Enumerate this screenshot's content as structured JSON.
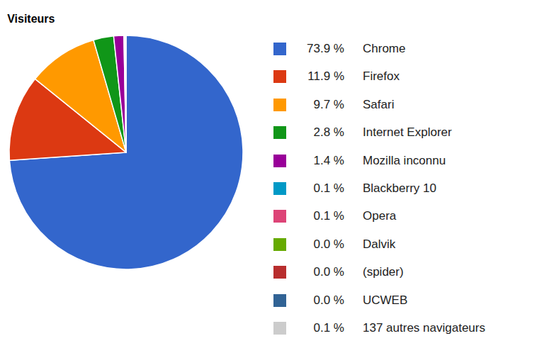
{
  "chart_data": {
    "type": "pie",
    "title": "Visiteurs",
    "categories": [
      "Chrome",
      "Firefox",
      "Safari",
      "Internet Explorer",
      "Mozilla inconnu",
      "Blackberry 10",
      "Opera",
      "Dalvik",
      "(spider)",
      "UCWEB",
      "137 autres navigateurs"
    ],
    "values": [
      73.9,
      11.9,
      9.7,
      2.8,
      1.4,
      0.1,
      0.1,
      0.0,
      0.0,
      0.0,
      0.1
    ],
    "value_labels": [
      "73.9 %",
      "11.9 %",
      "9.7 %",
      "2.8 %",
      "1.4 %",
      "0.1 %",
      "0.1 %",
      "0.0 %",
      "0.0 %",
      "0.0 %",
      "0.1 %"
    ],
    "colors": [
      "#3366cc",
      "#dc3912",
      "#ff9900",
      "#109618",
      "#990099",
      "#0099c6",
      "#dd4477",
      "#66aa00",
      "#b82e2e",
      "#316395",
      "#cccccc"
    ],
    "legend": "right"
  }
}
